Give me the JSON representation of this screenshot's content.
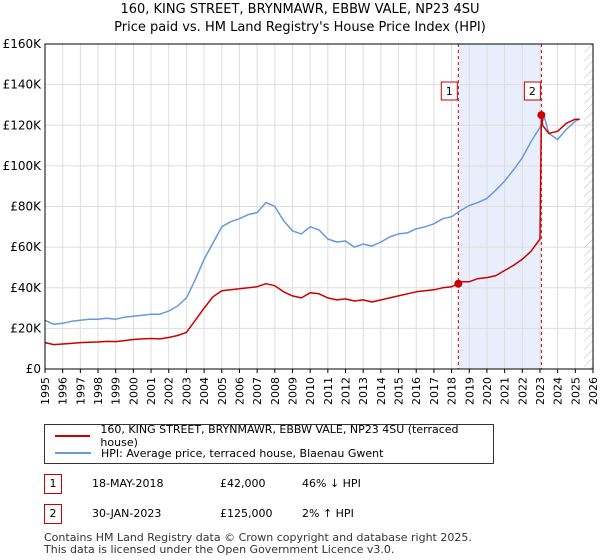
{
  "chart_data": {
    "type": "line",
    "title": "160, KING STREET, BRYNMAWR, EBBW VALE, NP23 4SU",
    "subtitle": "Price paid vs. HM Land Registry's House Price Index (HPI)",
    "xlabel": "",
    "ylabel": "",
    "xlim": [
      1995,
      2026
    ],
    "ylim": [
      0,
      160000
    ],
    "y_ticks": [
      0,
      20000,
      40000,
      60000,
      80000,
      100000,
      120000,
      140000,
      160000
    ],
    "y_tick_labels": [
      "£0",
      "£20K",
      "£40K",
      "£60K",
      "£80K",
      "£100K",
      "£120K",
      "£140K",
      "£160K"
    ],
    "x_ticks": [
      1995,
      1996,
      1997,
      1998,
      1999,
      2000,
      2001,
      2002,
      2003,
      2004,
      2005,
      2006,
      2007,
      2008,
      2009,
      2010,
      2011,
      2012,
      2013,
      2014,
      2015,
      2016,
      2017,
      2018,
      2019,
      2020,
      2021,
      2022,
      2023,
      2024,
      2025,
      2026
    ],
    "x_tick_labels": [
      "1995",
      "1996",
      "1997",
      "1998",
      "1999",
      "2000",
      "2001",
      "2002",
      "2003",
      "2004",
      "2005",
      "2006",
      "2007",
      "2008",
      "2009",
      "2010",
      "2011",
      "2012",
      "2013",
      "2014",
      "2015",
      "2016",
      "2017",
      "2018",
      "2019",
      "2020",
      "2021",
      "2022",
      "2023",
      "2024",
      "2025",
      "2026"
    ],
    "grid": true,
    "highlight_band": [
      2018.38,
      2023.08
    ],
    "future_hatch_from": 2025.5,
    "series": [
      {
        "name": "160, KING STREET, BRYNMAWR, EBBW VALE, NP23 4SU (terraced house)",
        "color": "#cc0000",
        "x": [
          1995,
          1995.5,
          1996,
          1996.5,
          1997,
          1997.5,
          1998,
          1998.5,
          1999,
          1999.5,
          2000,
          2000.5,
          2001,
          2001.5,
          2002,
          2002.5,
          2003,
          2003.5,
          2004,
          2004.5,
          2005,
          2005.5,
          2006,
          2006.5,
          2007,
          2007.5,
          2008,
          2008.5,
          2009,
          2009.5,
          2010,
          2010.5,
          2011,
          2011.5,
          2012,
          2012.5,
          2013,
          2013.5,
          2014,
          2014.5,
          2015,
          2015.5,
          2016,
          2016.5,
          2017,
          2017.5,
          2018,
          2018.38,
          2018.5,
          2019,
          2019.5,
          2020,
          2020.5,
          2021,
          2021.5,
          2022,
          2022.5,
          2023,
          2023.08,
          2023.15,
          2023.5,
          2024,
          2024.5,
          2025,
          2025.25
        ],
        "values": [
          13000,
          12000,
          12300,
          12600,
          13000,
          13200,
          13300,
          13600,
          13500,
          14000,
          14500,
          14800,
          15000,
          14800,
          15500,
          16500,
          18000,
          24000,
          30000,
          35500,
          38500,
          39000,
          39500,
          40000,
          40500,
          42000,
          41000,
          38000,
          36000,
          35000,
          37500,
          37000,
          35000,
          34000,
          34500,
          33500,
          34000,
          33000,
          34000,
          35000,
          36000,
          37000,
          38000,
          38500,
          39000,
          40000,
          40500,
          42000,
          43000,
          43000,
          44500,
          45000,
          46000,
          48500,
          51000,
          54000,
          58000,
          64000,
          125000,
          120000,
          116000,
          117000,
          121000,
          123000,
          123000
        ]
      },
      {
        "name": "HPI: Average price, terraced house, Blaenau Gwent",
        "color": "#6699dd",
        "x": [
          1995,
          1995.5,
          1996,
          1996.5,
          1997,
          1997.5,
          1998,
          1998.5,
          1999,
          1999.5,
          2000,
          2000.5,
          2001,
          2001.5,
          2002,
          2002.5,
          2003,
          2003.5,
          2004,
          2004.5,
          2005,
          2005.5,
          2006,
          2006.5,
          2007,
          2007.5,
          2008,
          2008.5,
          2009,
          2009.5,
          2010,
          2010.5,
          2011,
          2011.5,
          2012,
          2012.5,
          2013,
          2013.5,
          2014,
          2014.5,
          2015,
          2015.5,
          2016,
          2016.5,
          2017,
          2017.5,
          2018,
          2018.5,
          2019,
          2019.5,
          2020,
          2020.5,
          2021,
          2021.5,
          2022,
          2022.5,
          2023,
          2023.25,
          2023.5,
          2024,
          2024.5,
          2025,
          2025.25
        ],
        "values": [
          24000,
          22000,
          22500,
          23500,
          24000,
          24500,
          24500,
          25000,
          24500,
          25500,
          26000,
          26500,
          27000,
          27000,
          28500,
          31000,
          35000,
          44000,
          54000,
          62000,
          70000,
          72500,
          74000,
          76000,
          77000,
          82000,
          80000,
          73000,
          68000,
          66500,
          70000,
          68500,
          64000,
          62500,
          63000,
          60000,
          61500,
          60500,
          62500,
          65000,
          66500,
          67000,
          69000,
          70000,
          71500,
          74000,
          75000,
          78000,
          80500,
          82000,
          84000,
          88000,
          92500,
          98000,
          104000,
          112000,
          119000,
          124000,
          116000,
          113000,
          118000,
          122000,
          123000
        ]
      }
    ],
    "transactions_markers": [
      {
        "label": "1",
        "x": 2018.38,
        "value": 42000
      },
      {
        "label": "2",
        "x": 2023.08,
        "value": 125000
      }
    ]
  },
  "legend": {
    "property_label": "160, KING STREET, BRYNMAWR, EBBW VALE, NP23 4SU (terraced house)",
    "hpi_label": "HPI: Average price, terraced house, Blaenau Gwent"
  },
  "transactions": [
    {
      "num": "1",
      "date": "18-MAY-2018",
      "price": "£42,000",
      "hpi": "46% ↓ HPI"
    },
    {
      "num": "2",
      "date": "30-JAN-2023",
      "price": "£125,000",
      "hpi": "2% ↑ HPI"
    }
  ],
  "footer": {
    "line1": "Contains HM Land Registry data © Crown copyright and database right 2025.",
    "line2": "This data is licensed under the Open Government Licence v3.0."
  }
}
